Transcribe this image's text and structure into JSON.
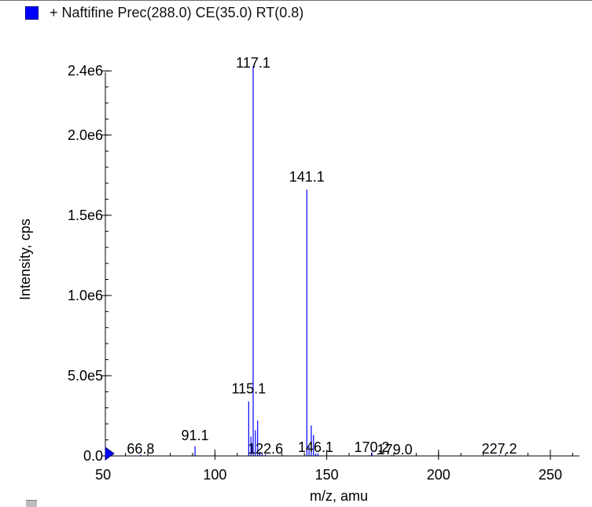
{
  "colors": {
    "series": "#0000ff",
    "axis": "#000000"
  },
  "legend": {
    "label": "+ Naftifine Prec(288.0) CE(35.0) RT(0.8)"
  },
  "chart_data": {
    "type": "bar",
    "title": "",
    "xlabel": "m/z, amu",
    "ylabel": "Intensity, cps",
    "xlim": [
      51,
      263
    ],
    "ylim": [
      0,
      2450000.0
    ],
    "x_ticks": [
      {
        "value": 50,
        "label": "50"
      },
      {
        "value": 100,
        "label": "100"
      },
      {
        "value": 150,
        "label": "150"
      },
      {
        "value": 200,
        "label": "200"
      },
      {
        "value": 250,
        "label": "250"
      }
    ],
    "y_ticks": [
      {
        "value": 0,
        "label": "0.0"
      },
      {
        "value": 500000,
        "label": "5.0e5"
      },
      {
        "value": 1000000,
        "label": "1.0e6"
      },
      {
        "value": 1500000,
        "label": "1.5e6"
      },
      {
        "value": 2000000,
        "label": "2.0e6"
      },
      {
        "value": 2400000,
        "label": "2.4e6"
      }
    ],
    "series": [
      {
        "x": [
          66.8,
          91.1,
          115.1,
          116.1,
          117.1,
          118.1,
          119.1,
          120.1,
          121.1,
          122.6,
          141.1,
          142.1,
          143.1,
          144.1,
          145.1,
          146.1,
          170.2,
          179.0,
          227.2
        ],
        "values": [
          8000,
          60000,
          340000,
          120000,
          2430000,
          160000,
          220000,
          25000,
          12000,
          10000,
          1660000,
          60000,
          190000,
          130000,
          15000,
          16000,
          22000,
          5000,
          6000
        ]
      }
    ],
    "peak_labels": [
      {
        "x": 117.1,
        "label": "117.1"
      },
      {
        "x": 141.1,
        "label": "141.1"
      },
      {
        "x": 115.1,
        "label": "115.1"
      },
      {
        "x": 91.1,
        "label": "91.1"
      },
      {
        "x": 66.8,
        "label": "66.8"
      },
      {
        "x": 122.6,
        "label": "122.6"
      },
      {
        "x": 146.1,
        "label": "146.1"
      },
      {
        "x": 170.2,
        "label": "170.2"
      },
      {
        "x": 179.0,
        "label": "179.0"
      },
      {
        "x": 227.2,
        "label": "227.2"
      }
    ],
    "grid": false,
    "legend_position": "top-left"
  }
}
